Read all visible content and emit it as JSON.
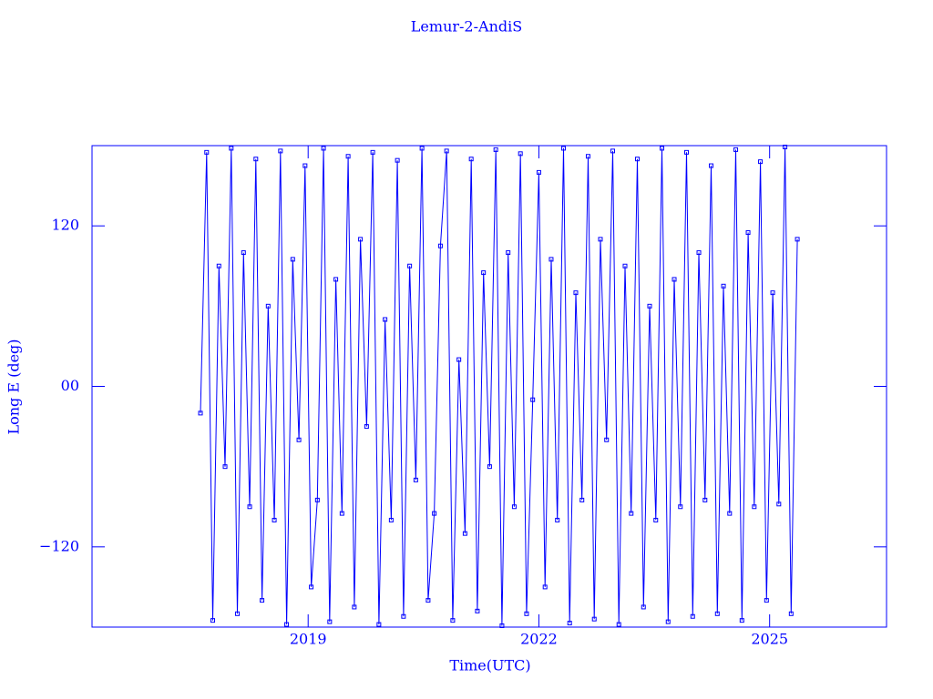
{
  "chart_data": {
    "type": "line",
    "title": "Lemur-2-AndiS",
    "x_label": "Time(UTC)",
    "y_label": "Long E (deg)",
    "xlim": [
      2016.19,
      2026.52
    ],
    "xticks": [
      2019,
      2022,
      2025
    ],
    "ylim": [
      -180,
      180
    ],
    "yticks": [
      {
        "value": -120,
        "label": "−120"
      },
      {
        "value": 0,
        "label": "00"
      },
      120
    ],
    "color": "#0000ff",
    "x": [
      2017.6,
      2017.68,
      2017.76,
      2017.84,
      2017.92,
      2018,
      2018.08,
      2018.16,
      2018.24,
      2018.32,
      2018.4,
      2018.48,
      2018.56,
      2018.64,
      2018.72,
      2018.8,
      2018.88,
      2018.96,
      2019.04,
      2019.12,
      2019.2,
      2019.28,
      2019.36,
      2019.44,
      2019.52,
      2019.6,
      2019.68,
      2019.76,
      2019.84,
      2019.92,
      2020,
      2020.08,
      2020.16,
      2020.24,
      2020.32,
      2020.4,
      2020.48,
      2020.56,
      2020.64,
      2020.72,
      2020.8,
      2020.88,
      2020.96,
      2021.04,
      2021.12,
      2021.2,
      2021.28,
      2021.36,
      2021.44,
      2021.52,
      2021.6,
      2021.68,
      2021.76,
      2021.84,
      2021.92,
      2022,
      2022.08,
      2022.16,
      2022.24,
      2022.32,
      2022.4,
      2022.48,
      2022.56,
      2022.64,
      2022.72,
      2022.8,
      2022.88,
      2022.96,
      2023.04,
      2023.12,
      2023.2,
      2023.28,
      2023.36,
      2023.44,
      2023.52,
      2023.6,
      2023.68,
      2023.76,
      2023.84,
      2023.92,
      2024,
      2024.08,
      2024.16,
      2024.24,
      2024.32,
      2024.4,
      2024.48,
      2024.56,
      2024.64,
      2024.72,
      2024.8,
      2024.88,
      2024.96,
      2025.04,
      2025.12,
      2025.2,
      2025.28,
      2025.36
    ],
    "values": [
      -20,
      175,
      -175,
      90,
      -60,
      178,
      -170,
      100,
      -90,
      170,
      -160,
      60,
      -100,
      176,
      -178,
      95,
      -40,
      165,
      -150,
      -85,
      178,
      -176,
      80,
      -95,
      172,
      -165,
      110,
      -30,
      175,
      -178,
      50,
      -100,
      169,
      -172,
      90,
      -70,
      178,
      -160,
      -95,
      105,
      176,
      -175,
      20,
      -110,
      170,
      -168,
      85,
      -60,
      177,
      -179,
      100,
      -90,
      174,
      -170,
      -10,
      160,
      -150,
      95,
      -100,
      178,
      -177,
      70,
      -85,
      172,
      -174,
      110,
      -40,
      176,
      -178,
      90,
      -95,
      170,
      -165,
      60,
      -100,
      178,
      -176,
      80,
      -90,
      175,
      -172,
      100,
      -85,
      165,
      -170,
      75,
      -95,
      177,
      -175,
      115,
      -90,
      168,
      -160,
      70,
      -88,
      179,
      -170,
      110
    ]
  }
}
